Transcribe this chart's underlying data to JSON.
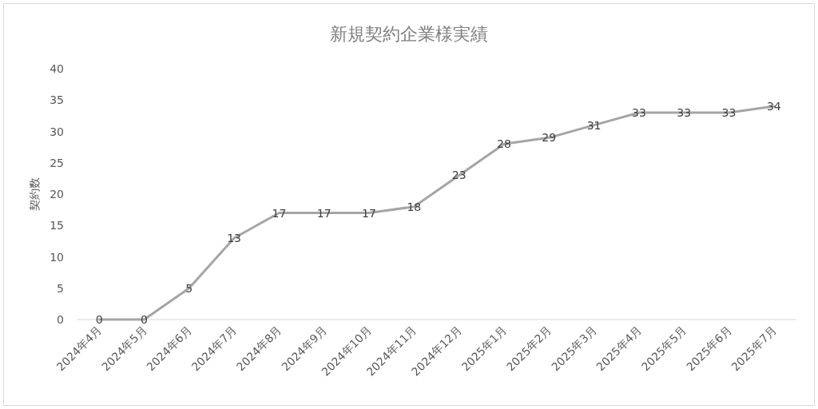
{
  "chart_data": {
    "type": "line",
    "title": "新規契約企業様実績",
    "ylabel": "契約数",
    "categories": [
      "2024年4月",
      "2024年5月",
      "2024年6月",
      "2024年7月",
      "2024年8月",
      "2024年9月",
      "2024年10月",
      "2024年11月",
      "2024年12月",
      "2025年1月",
      "2025年2月",
      "2025年3月",
      "2025年4月",
      "2025年5月",
      "2025年6月",
      "2025年7月"
    ],
    "series": [
      {
        "color": "#a5a5a5",
        "values": [
          0,
          0,
          5,
          13,
          17,
          17,
          17,
          18,
          23,
          28,
          29,
          31,
          33,
          33,
          33,
          34
        ]
      }
    ],
    "ylim": [
      0,
      40
    ],
    "yticks": [
      0,
      5,
      10,
      15,
      20,
      25,
      30,
      35,
      40
    ],
    "data_labels": true,
    "grid": false,
    "marker": "none",
    "line_style": "solid"
  }
}
